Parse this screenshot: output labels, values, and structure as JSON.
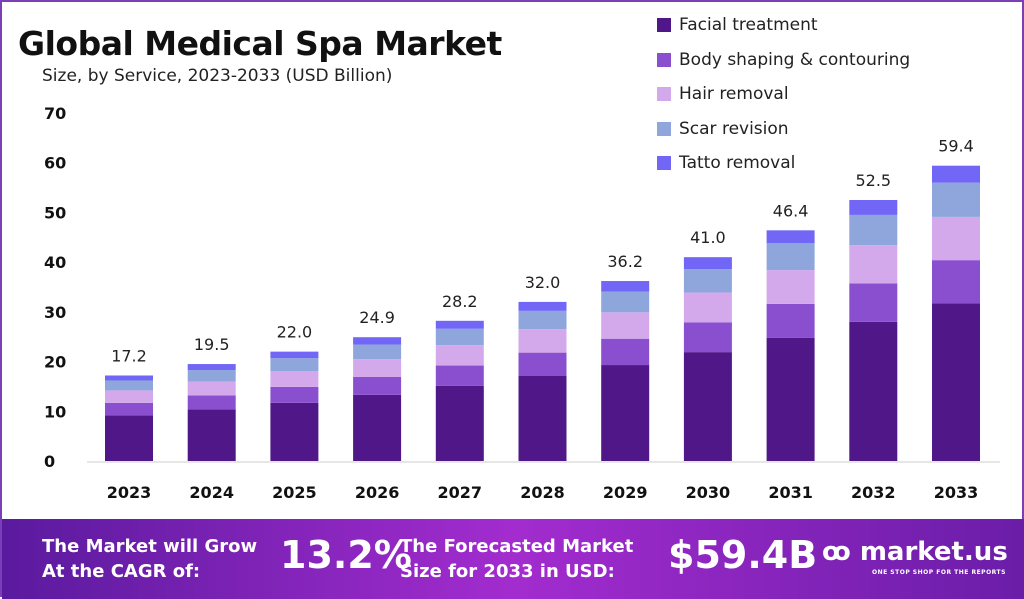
{
  "chart_data": {
    "type": "bar",
    "stacked": true,
    "title": "Global Medical Spa Market",
    "subtitle": "Size, by Service, 2023-2033 (USD Billion)",
    "categories": [
      "2023",
      "2024",
      "2025",
      "2026",
      "2027",
      "2028",
      "2029",
      "2030",
      "2031",
      "2032",
      "2033"
    ],
    "totals": [
      "17.2",
      "19.5",
      "22.0",
      "24.9",
      "28.2",
      "32.0",
      "36.2",
      "41.0",
      "46.4",
      "52.5",
      "59.4"
    ],
    "ylim": [
      0,
      70
    ],
    "yticks": [
      0,
      10,
      20,
      30,
      40,
      50,
      60,
      70
    ],
    "legend_position": "top-right",
    "grid": false,
    "series": [
      {
        "name": "Facial treatment",
        "color": "#4f1787",
        "values": [
          9.2,
          10.4,
          11.7,
          13.3,
          15.1,
          17.1,
          19.3,
          21.9,
          24.8,
          28.0,
          31.7
        ]
      },
      {
        "name": "Body shaping & contouring",
        "color": "#8a4fcf",
        "values": [
          2.5,
          2.8,
          3.2,
          3.6,
          4.1,
          4.7,
          5.3,
          6.0,
          6.8,
          7.7,
          8.7
        ]
      },
      {
        "name": "Hair removal",
        "color": "#d4a9ec",
        "values": [
          2.5,
          2.8,
          3.2,
          3.6,
          4.1,
          4.7,
          5.3,
          6.0,
          6.8,
          7.7,
          8.7
        ]
      },
      {
        "name": "Scar revision",
        "color": "#8fa6dc",
        "values": [
          2.0,
          2.3,
          2.6,
          2.9,
          3.3,
          3.7,
          4.2,
          4.7,
          5.4,
          6.1,
          6.9
        ]
      },
      {
        "name": "Tatto removal",
        "color": "#7166f5",
        "values": [
          1.0,
          1.2,
          1.3,
          1.5,
          1.6,
          1.8,
          2.1,
          2.4,
          2.6,
          3.0,
          3.4
        ]
      }
    ]
  },
  "banner": {
    "cagr_label_1": "The Market will Grow",
    "cagr_label_2": "At the CAGR of:",
    "cagr": "13.2%",
    "forecast_label_1": "The Forecasted Market",
    "forecast_label_2": "Size for 2033 in USD:",
    "forecast": "$59.4B",
    "brand": "market.us",
    "tagline": "ONE STOP SHOP FOR THE REPORTS"
  }
}
